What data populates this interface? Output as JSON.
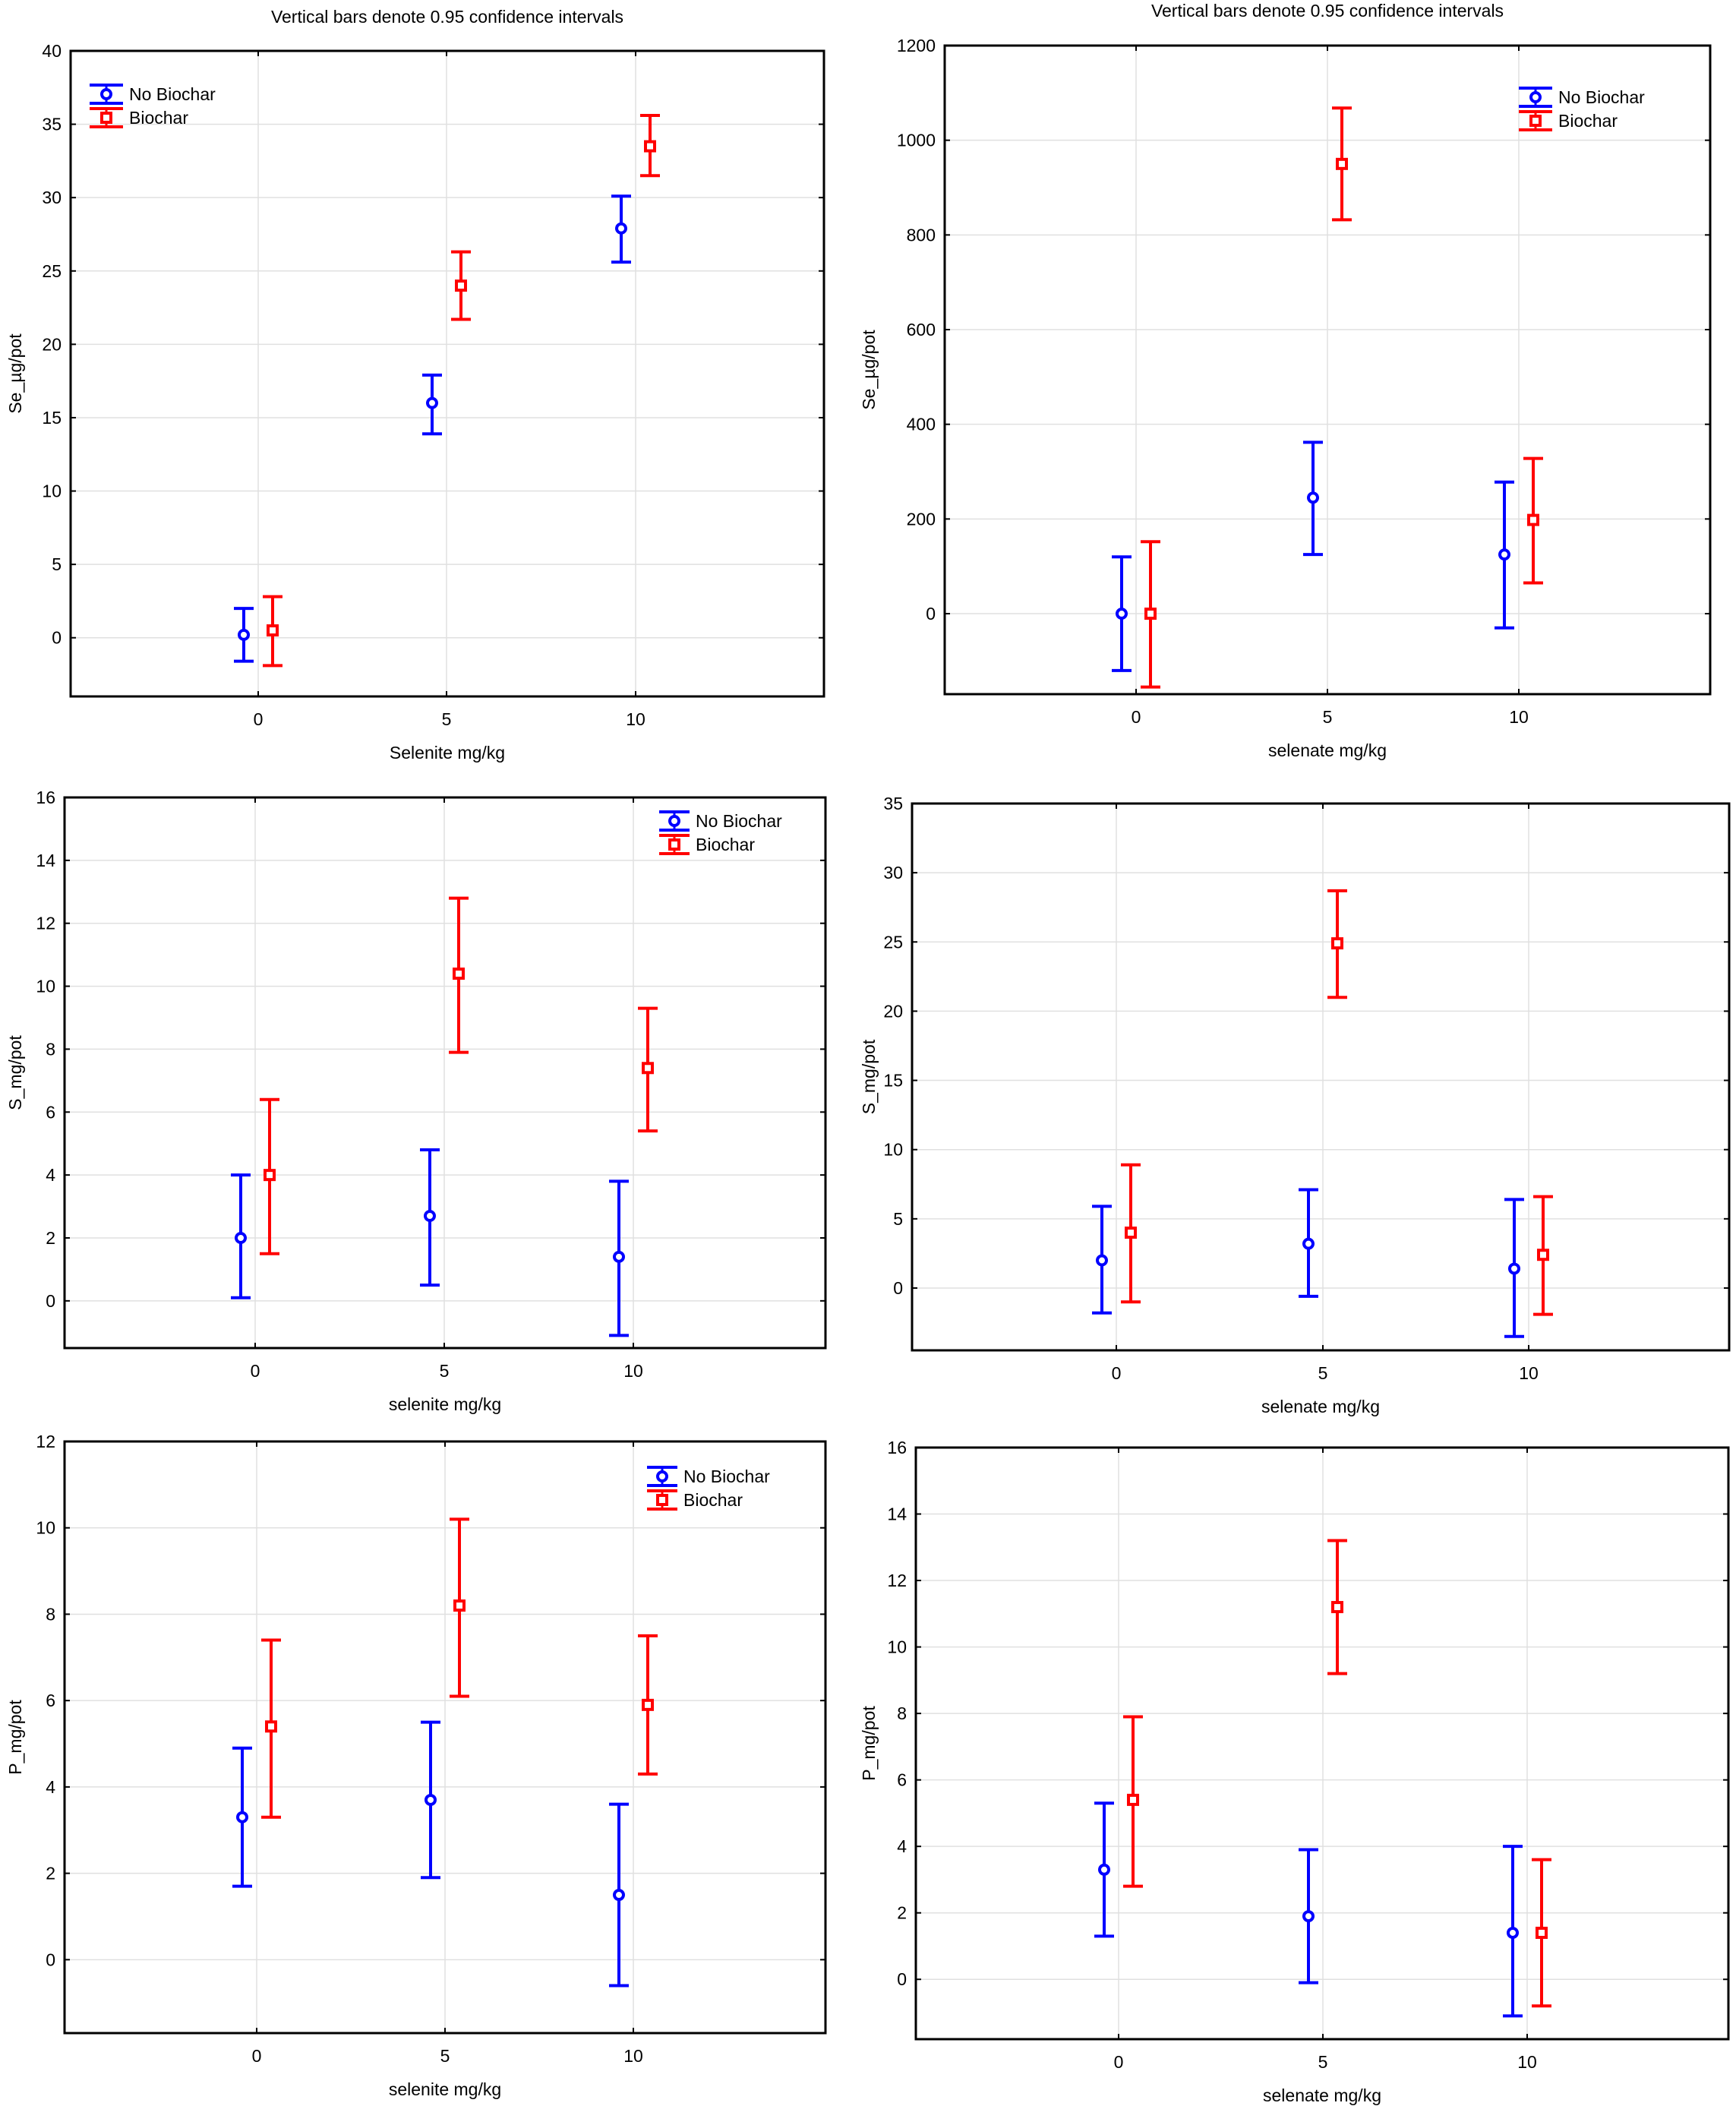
{
  "colors": {
    "no_biochar": "#0000ff",
    "biochar": "#ff0000",
    "grid": "#e0e0e0",
    "axis": "#000000"
  },
  "legend_labels": [
    "No Biochar",
    "Biochar"
  ],
  "chart_data": [
    {
      "type": "scatter",
      "title": "Vertical bars denote 0.95 confidence intervals",
      "xlabel": "Selenite mg/kg",
      "ylabel": "Se_µg/pot",
      "categories": [
        "0",
        "5",
        "10"
      ],
      "ylim": [
        -4,
        40
      ],
      "yticks": [
        0,
        5,
        10,
        15,
        20,
        25,
        30,
        35,
        40
      ],
      "legend": "top-left",
      "series": [
        {
          "name": "No Biochar",
          "color": "#0000ff",
          "marker": "circle",
          "mean": [
            0.2,
            16.0,
            27.9
          ],
          "lower": [
            -1.6,
            13.9,
            25.6
          ],
          "upper": [
            2.0,
            17.9,
            30.1
          ]
        },
        {
          "name": "Biochar",
          "color": "#ff0000",
          "marker": "square",
          "mean": [
            0.5,
            24.0,
            33.5
          ],
          "lower": [
            -1.9,
            21.7,
            31.5
          ],
          "upper": [
            2.8,
            26.3,
            35.6
          ]
        }
      ]
    },
    {
      "type": "scatter",
      "title": "Vertical bars denote 0.95 confidence intervals",
      "xlabel": "selenate mg/kg",
      "ylabel": "Se_µg/pot",
      "categories": [
        "0",
        "5",
        "10"
      ],
      "ylim": [
        -170,
        1200
      ],
      "yticks": [
        0,
        200,
        400,
        600,
        800,
        1000,
        1200
      ],
      "legend": "top-right",
      "series": [
        {
          "name": "No Biochar",
          "color": "#0000ff",
          "marker": "circle",
          "mean": [
            0,
            245,
            125
          ],
          "lower": [
            -120,
            125,
            -30
          ],
          "upper": [
            120,
            362,
            278
          ]
        },
        {
          "name": "Biochar",
          "color": "#ff0000",
          "marker": "square",
          "mean": [
            0,
            950,
            198
          ],
          "lower": [
            -155,
            832,
            65
          ],
          "upper": [
            152,
            1068,
            328
          ]
        }
      ]
    },
    {
      "type": "scatter",
      "title": "",
      "xlabel": "selenite mg/kg",
      "ylabel": "S_mg/pot",
      "categories": [
        "0",
        "5",
        "10"
      ],
      "ylim": [
        -1.5,
        16
      ],
      "yticks": [
        0,
        2,
        4,
        6,
        8,
        10,
        12,
        14,
        16
      ],
      "legend": "top-right",
      "series": [
        {
          "name": "No Biochar",
          "color": "#0000ff",
          "marker": "circle",
          "mean": [
            2.0,
            2.7,
            1.4
          ],
          "lower": [
            0.1,
            0.5,
            -1.1
          ],
          "upper": [
            4.0,
            4.8,
            3.8
          ]
        },
        {
          "name": "Biochar",
          "color": "#ff0000",
          "marker": "square",
          "mean": [
            4.0,
            10.4,
            7.4
          ],
          "lower": [
            1.5,
            7.9,
            5.4
          ],
          "upper": [
            6.4,
            12.8,
            9.3
          ]
        }
      ]
    },
    {
      "type": "scatter",
      "title": "",
      "xlabel": "selenate mg/kg",
      "ylabel": "S_mg/pot",
      "categories": [
        "0",
        "5",
        "10"
      ],
      "ylim": [
        -4.5,
        35
      ],
      "yticks": [
        0,
        5,
        10,
        15,
        20,
        25,
        30,
        35
      ],
      "legend": "none",
      "series": [
        {
          "name": "No Biochar",
          "color": "#0000ff",
          "marker": "circle",
          "mean": [
            2.0,
            3.2,
            1.4
          ],
          "lower": [
            -1.8,
            -0.6,
            -3.5
          ],
          "upper": [
            5.9,
            7.1,
            6.4
          ]
        },
        {
          "name": "Biochar",
          "color": "#ff0000",
          "marker": "square",
          "mean": [
            4.0,
            24.9,
            2.4
          ],
          "lower": [
            -1.0,
            21.0,
            -1.9
          ],
          "upper": [
            8.9,
            28.7,
            6.6
          ]
        }
      ]
    },
    {
      "type": "scatter",
      "title": "",
      "xlabel": "selenite mg/kg",
      "ylabel": "P_mg/pot",
      "categories": [
        "0",
        "5",
        "10"
      ],
      "ylim": [
        -1.7,
        12
      ],
      "yticks": [
        0,
        2,
        4,
        6,
        8,
        10,
        12
      ],
      "legend": "top-right",
      "series": [
        {
          "name": "No Biochar",
          "color": "#0000ff",
          "marker": "circle",
          "mean": [
            3.3,
            3.7,
            1.5
          ],
          "lower": [
            1.7,
            1.9,
            -0.6
          ],
          "upper": [
            4.9,
            5.5,
            3.6
          ]
        },
        {
          "name": "Biochar",
          "color": "#ff0000",
          "marker": "square",
          "mean": [
            5.4,
            8.2,
            5.9
          ],
          "lower": [
            3.3,
            6.1,
            4.3
          ],
          "upper": [
            7.4,
            10.2,
            7.5
          ]
        }
      ]
    },
    {
      "type": "scatter",
      "title": "",
      "xlabel": "selenate mg/kg",
      "ylabel": "P_mg/pot",
      "categories": [
        "0",
        "5",
        "10"
      ],
      "ylim": [
        -1.8,
        16
      ],
      "yticks": [
        0,
        2,
        4,
        6,
        8,
        10,
        12,
        14,
        16
      ],
      "legend": "none",
      "series": [
        {
          "name": "No Biochar",
          "color": "#0000ff",
          "marker": "circle",
          "mean": [
            3.3,
            1.9,
            1.4
          ],
          "lower": [
            1.3,
            -0.1,
            -1.1
          ],
          "upper": [
            5.3,
            3.9,
            4.0
          ]
        },
        {
          "name": "Biochar",
          "color": "#ff0000",
          "marker": "square",
          "mean": [
            5.4,
            11.2,
            1.4
          ],
          "lower": [
            2.8,
            9.2,
            -0.8
          ],
          "upper": [
            7.9,
            13.2,
            3.6
          ]
        }
      ]
    }
  ]
}
